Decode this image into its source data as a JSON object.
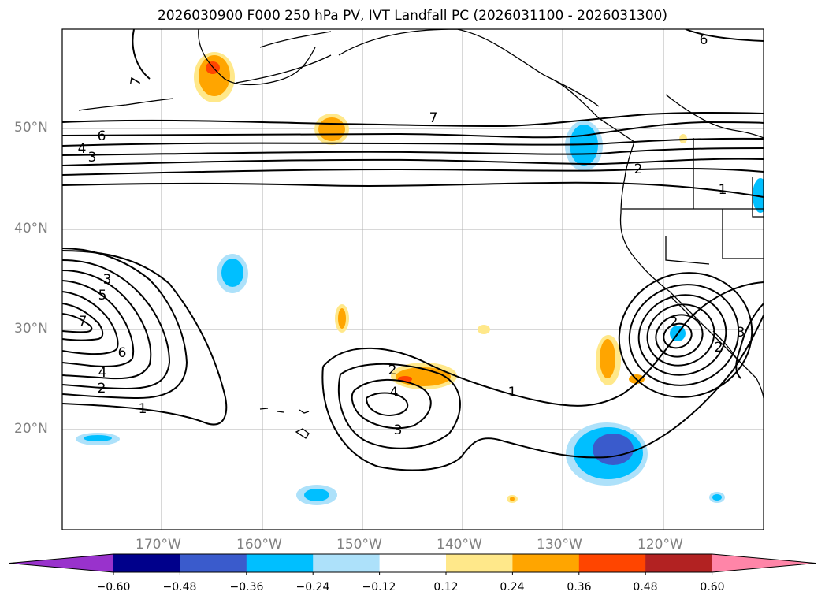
{
  "title": "2026030900 F000 250 hPa PV, IVT Landfall PC (2026031100 - 2026031300)",
  "lat_labels": [
    "50°N",
    "40°N",
    "30°N",
    "20°N"
  ],
  "lon_labels": [
    "170°W",
    "160°W",
    "150°W",
    "140°W",
    "130°W",
    "120°W"
  ],
  "colorbar": {
    "ticks": [
      "−0.60",
      "−0.48",
      "−0.36",
      "−0.24",
      "−0.12",
      "0.12",
      "0.24",
      "0.36",
      "0.48",
      "0.60"
    ],
    "colors": [
      "#9932CC",
      "#00008B",
      "#3A5BCC",
      "#00BFFF",
      "#ADE1FA",
      "#FFFFFF",
      "#FFE88A",
      "#FFA500",
      "#FF4500",
      "#B22222",
      "#FF85A8"
    ]
  },
  "contour_labels": [
    "6",
    "7",
    "6",
    "4",
    "3",
    "7",
    "2",
    "1",
    "7",
    "3",
    "5",
    "6",
    "4",
    "2",
    "1",
    "2",
    "4",
    "3",
    "1",
    "2",
    "3",
    "2"
  ],
  "colors": {
    "land": "#000000",
    "grid": "#b0b0b0"
  }
}
